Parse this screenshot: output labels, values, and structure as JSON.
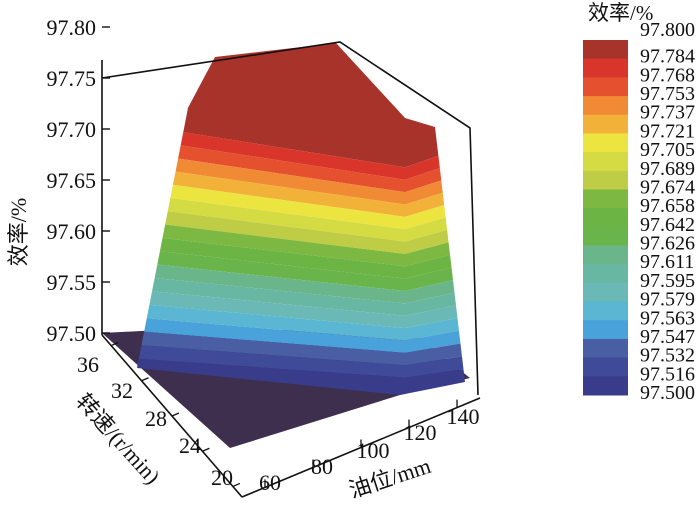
{
  "chart_data": {
    "type": "surface",
    "title": "",
    "zlabel": "效率/%",
    "ylabel": "转速/(r/min)",
    "xlabel": "油位/mm",
    "z_ticks": [
      "97.50",
      "97.55",
      "97.60",
      "97.65",
      "97.70",
      "97.75",
      "97.80"
    ],
    "y_ticks": [
      "36",
      "32",
      "28",
      "24",
      "20"
    ],
    "x_ticks": [
      "60",
      "80",
      "100",
      "120",
      "140"
    ],
    "zlim": [
      97.5,
      97.8
    ],
    "floor_color": "#3f2f4f",
    "colorbar": {
      "title": "效率/%",
      "labels": [
        "97.800",
        "97.784",
        "97.768",
        "97.753",
        "97.737",
        "97.721",
        "97.705",
        "97.689",
        "97.674",
        "97.658",
        "97.642",
        "97.626",
        "97.611",
        "97.595",
        "97.579",
        "97.563",
        "97.547",
        "97.532",
        "97.516",
        "97.500"
      ],
      "colors": [
        "#a8332b",
        "#d9352b",
        "#e5502f",
        "#f08a35",
        "#f2b23a",
        "#ece53f",
        "#d5db42",
        "#bfcc46",
        "#7cb842",
        "#6cb443",
        "#6ab44c",
        "#6ab68a",
        "#68b7a2",
        "#6ab9b6",
        "#5ab6d2",
        "#4aa2da",
        "#4a5fa3",
        "#3f4a98",
        "#383c8a"
      ]
    }
  }
}
